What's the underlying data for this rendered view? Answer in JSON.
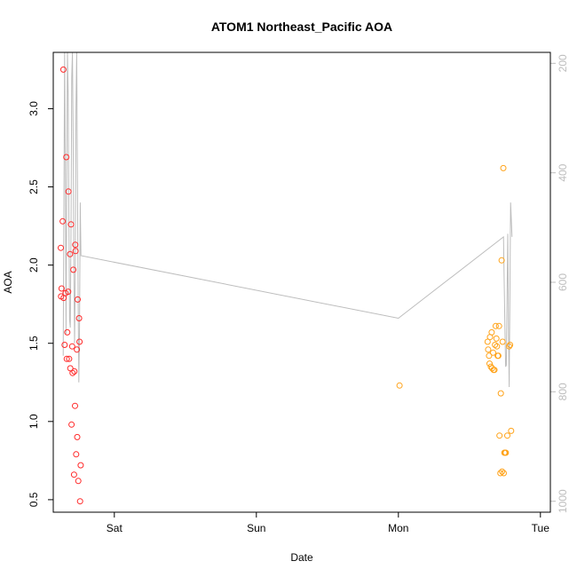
{
  "chart_data": {
    "type": "scatter",
    "title": "ATOM1 Northeast_Pacific AOA",
    "xlabel": "Date",
    "ylabel": "AOA",
    "x_unit": "days",
    "xlim": [
      -0.43,
      3.07
    ],
    "ylim": [
      0.42,
      3.36
    ],
    "x_ticks": [
      {
        "value": 0,
        "label": "Sat"
      },
      {
        "value": 1,
        "label": "Sun"
      },
      {
        "value": 2,
        "label": "Mon"
      },
      {
        "value": 3,
        "label": "Tue"
      }
    ],
    "y_ticks": [
      {
        "value": 0.5,
        "label": "0.5"
      },
      {
        "value": 1.0,
        "label": "1.0"
      },
      {
        "value": 1.5,
        "label": "1.5"
      },
      {
        "value": 2.0,
        "label": "2.0"
      },
      {
        "value": 2.5,
        "label": "2.5"
      },
      {
        "value": 3.0,
        "label": "3.0"
      }
    ],
    "right_axis": {
      "inverted": true,
      "lim": [
        180,
        1020
      ],
      "color": "#bdbdbd",
      "ticks": [
        {
          "value": 200,
          "label": "200"
        },
        {
          "value": 400,
          "label": "400"
        },
        {
          "value": 600,
          "label": "600"
        },
        {
          "value": 800,
          "label": "800"
        },
        {
          "value": 1000,
          "label": "1000"
        }
      ]
    },
    "series": [
      {
        "color": "#ff2a2a",
        "marker": "open-circle",
        "points": [
          [
            -0.377,
            2.11
          ],
          [
            -0.375,
            1.8
          ],
          [
            -0.371,
            1.85
          ],
          [
            -0.364,
            2.28
          ],
          [
            -0.359,
            3.25
          ],
          [
            -0.357,
            1.79
          ],
          [
            -0.35,
            1.49
          ],
          [
            -0.344,
            1.82
          ],
          [
            -0.338,
            2.69
          ],
          [
            -0.335,
            1.4
          ],
          [
            -0.331,
            1.57
          ],
          [
            -0.325,
            1.83
          ],
          [
            -0.323,
            2.47
          ],
          [
            -0.318,
            1.4
          ],
          [
            -0.312,
            2.07
          ],
          [
            -0.31,
            1.34
          ],
          [
            -0.305,
            2.26
          ],
          [
            -0.301,
            0.98
          ],
          [
            -0.297,
            1.48
          ],
          [
            -0.294,
            1.31
          ],
          [
            -0.289,
            1.97
          ],
          [
            -0.284,
            0.66
          ],
          [
            -0.281,
            1.32
          ],
          [
            -0.277,
            1.1
          ],
          [
            -0.275,
            2.13
          ],
          [
            -0.273,
            2.09
          ],
          [
            -0.269,
            0.79
          ],
          [
            -0.264,
            1.46
          ],
          [
            -0.261,
            0.9
          ],
          [
            -0.258,
            1.78
          ],
          [
            -0.254,
            0.62
          ],
          [
            -0.248,
            1.66
          ],
          [
            -0.245,
            1.51
          ],
          [
            -0.241,
            0.49
          ],
          [
            -0.237,
            0.72
          ]
        ]
      },
      {
        "color": "#ffa31a",
        "marker": "open-circle",
        "points": [
          [
            2.008,
            1.23
          ],
          [
            2.628,
            1.51
          ],
          [
            2.632,
            1.46
          ],
          [
            2.638,
            1.42
          ],
          [
            2.642,
            1.37
          ],
          [
            2.645,
            1.54
          ],
          [
            2.651,
            1.35
          ],
          [
            2.657,
            1.57
          ],
          [
            2.66,
            1.34
          ],
          [
            2.667,
            1.44
          ],
          [
            2.67,
            1.33
          ],
          [
            2.676,
            1.33
          ],
          [
            2.68,
            1.49
          ],
          [
            2.685,
            1.61
          ],
          [
            2.69,
            1.53
          ],
          [
            2.694,
            1.48
          ],
          [
            2.699,
            1.42
          ],
          [
            2.704,
            1.42
          ],
          [
            2.709,
            1.61
          ],
          [
            2.712,
            0.91
          ],
          [
            2.718,
            0.67
          ],
          [
            2.721,
            1.18
          ],
          [
            2.727,
            2.03
          ],
          [
            2.73,
            0.68
          ],
          [
            2.734,
            1.51
          ],
          [
            2.739,
            2.62
          ],
          [
            2.742,
            0.67
          ],
          [
            2.746,
            0.8
          ],
          [
            2.751,
            0.8
          ],
          [
            2.756,
            0.8
          ],
          [
            2.767,
            0.91
          ],
          [
            2.78,
            1.48
          ],
          [
            2.786,
            1.49
          ],
          [
            2.794,
            0.94
          ]
        ]
      }
    ],
    "depth_line": {
      "color": "#bdbdbd",
      "points": [
        [
          -0.36,
          1.42
        ],
        [
          -0.355,
          2.4
        ],
        [
          -0.35,
          3.36
        ],
        [
          -0.345,
          2.6
        ],
        [
          -0.34,
          1.56
        ],
        [
          -0.335,
          2.5
        ],
        [
          -0.33,
          3.36
        ],
        [
          -0.325,
          3.1
        ],
        [
          -0.32,
          2.3
        ],
        [
          -0.315,
          1.65
        ],
        [
          -0.31,
          1.6
        ],
        [
          -0.305,
          2.2
        ],
        [
          -0.3,
          3.2
        ],
        [
          -0.295,
          3.36
        ],
        [
          -0.29,
          2.8
        ],
        [
          -0.285,
          2.0
        ],
        [
          -0.28,
          1.5
        ],
        [
          -0.275,
          1.9
        ],
        [
          -0.27,
          3.0
        ],
        [
          -0.265,
          3.36
        ],
        [
          -0.26,
          2.6
        ],
        [
          -0.255,
          1.8
        ],
        [
          -0.25,
          1.25
        ],
        [
          -0.245,
          1.6
        ],
        [
          -0.24,
          2.4
        ],
        [
          -0.235,
          2.06
        ],
        [
          2.0,
          1.66
        ],
        [
          2.74,
          2.18
        ],
        [
          2.75,
          1.6
        ],
        [
          2.755,
          1.35
        ],
        [
          2.76,
          1.36
        ],
        [
          2.765,
          1.8
        ],
        [
          2.77,
          2.2
        ],
        [
          2.775,
          1.6
        ],
        [
          2.78,
          1.22
        ],
        [
          2.785,
          1.8
        ],
        [
          2.79,
          2.4
        ],
        [
          2.8,
          2.18
        ]
      ]
    }
  }
}
